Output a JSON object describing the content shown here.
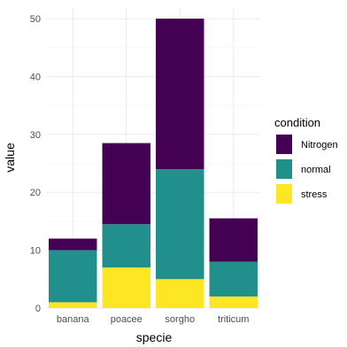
{
  "chart_data": {
    "type": "bar",
    "stacked": true,
    "categories": [
      "banana",
      "poacee",
      "sorgho",
      "triticum"
    ],
    "series": [
      {
        "name": "Nitrogen",
        "color": "#440154",
        "values": [
          2.0,
          14.0,
          26.0,
          7.5
        ]
      },
      {
        "name": "normal",
        "color": "#21908C",
        "values": [
          9.0,
          7.5,
          19.0,
          6.0
        ]
      },
      {
        "name": "stress",
        "color": "#FDE725",
        "values": [
          1.0,
          7.0,
          5.0,
          2.0
        ]
      }
    ],
    "xlabel": "specie",
    "ylabel": "value",
    "ylim": [
      0,
      52
    ],
    "yticks": [
      0,
      10,
      20,
      30,
      40,
      50
    ],
    "legend": {
      "title": "condition",
      "position": "right"
    },
    "grid": true
  }
}
